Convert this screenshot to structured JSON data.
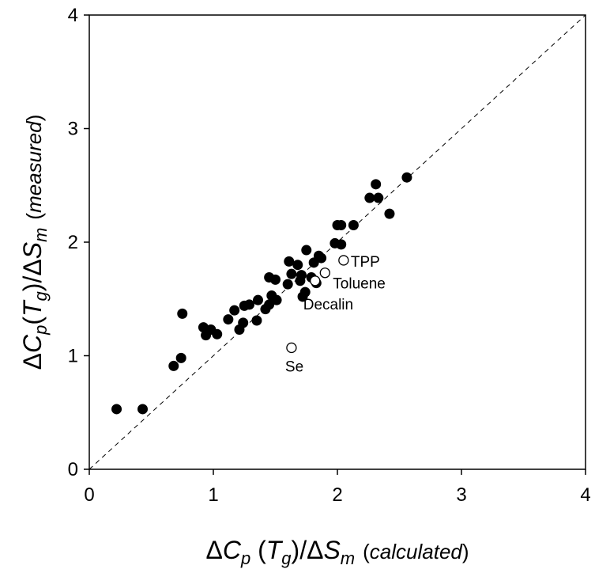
{
  "chart_data": {
    "type": "scatter",
    "title": "",
    "xlabel": "ΔCp(Tg)/ΔSm (calculated)",
    "ylabel": "ΔCp(Tg)/ΔSm (measured)",
    "xlabel_parts": {
      "delta": "Δ",
      "c": "C",
      "p": "p",
      "open": " (",
      "t": "T",
      "g": "g",
      "close": ")/",
      "delta2": "Δ",
      "s": "S",
      "m": "m",
      "paren_open": "(",
      "note": "calculated",
      "paren_close": ")"
    },
    "ylabel_parts": {
      "delta": "Δ",
      "c": "C",
      "p": "p",
      "open": "(",
      "t": "T",
      "g": "g",
      "close": ")/",
      "delta2": "Δ",
      "s": "S",
      "m": "m",
      "paren_open": "(",
      "note": "measured",
      "paren_close": ")"
    },
    "xlim": [
      0,
      4
    ],
    "ylim": [
      0,
      4
    ],
    "xticks": [
      "0",
      "1",
      "2",
      "3",
      "4"
    ],
    "yticks": [
      "0",
      "1",
      "2",
      "3",
      "4"
    ],
    "grid": false,
    "reference_line": {
      "style": "dashed",
      "from": [
        0,
        0
      ],
      "to": [
        4,
        4
      ]
    },
    "series": [
      {
        "marker": "filled-circle",
        "points": [
          [
            0.22,
            0.53
          ],
          [
            0.43,
            0.53
          ],
          [
            0.68,
            0.91
          ],
          [
            0.74,
            0.98
          ],
          [
            0.75,
            1.37
          ],
          [
            0.92,
            1.25
          ],
          [
            0.94,
            1.18
          ],
          [
            0.98,
            1.23
          ],
          [
            1.03,
            1.19
          ],
          [
            1.12,
            1.32
          ],
          [
            1.17,
            1.4
          ],
          [
            1.21,
            1.23
          ],
          [
            1.24,
            1.29
          ],
          [
            1.25,
            1.44
          ],
          [
            1.29,
            1.45
          ],
          [
            1.35,
            1.31
          ],
          [
            1.36,
            1.49
          ],
          [
            1.42,
            1.41
          ],
          [
            1.45,
            1.45
          ],
          [
            1.47,
            1.53
          ],
          [
            1.45,
            1.69
          ],
          [
            1.5,
            1.67
          ],
          [
            1.51,
            1.49
          ],
          [
            1.6,
            1.63
          ],
          [
            1.61,
            1.83
          ],
          [
            1.63,
            1.72
          ],
          [
            1.68,
            1.8
          ],
          [
            1.7,
            1.66
          ],
          [
            1.71,
            1.71
          ],
          [
            1.72,
            1.52
          ],
          [
            1.74,
            1.56
          ],
          [
            1.75,
            1.93
          ],
          [
            1.79,
            1.69
          ],
          [
            1.81,
            1.82
          ],
          [
            1.83,
            1.64
          ],
          [
            1.85,
            1.88
          ],
          [
            1.87,
            1.86
          ],
          [
            1.98,
            1.99
          ],
          [
            2.0,
            2.15
          ],
          [
            2.03,
            2.15
          ],
          [
            2.03,
            1.98
          ],
          [
            2.13,
            2.15
          ],
          [
            2.26,
            2.39
          ],
          [
            2.31,
            2.51
          ],
          [
            2.33,
            2.39
          ],
          [
            2.42,
            2.25
          ],
          [
            2.56,
            2.57
          ]
        ]
      },
      {
        "marker": "open-circle",
        "points": [
          {
            "x": 1.63,
            "y": 1.07,
            "label": "Se"
          },
          {
            "x": 1.9,
            "y": 1.73,
            "label": "Toluene"
          },
          {
            "x": 2.05,
            "y": 1.84,
            "label": "TPP"
          },
          {
            "x": 1.82,
            "y": 1.66,
            "label": "Decalin"
          }
        ]
      }
    ]
  }
}
